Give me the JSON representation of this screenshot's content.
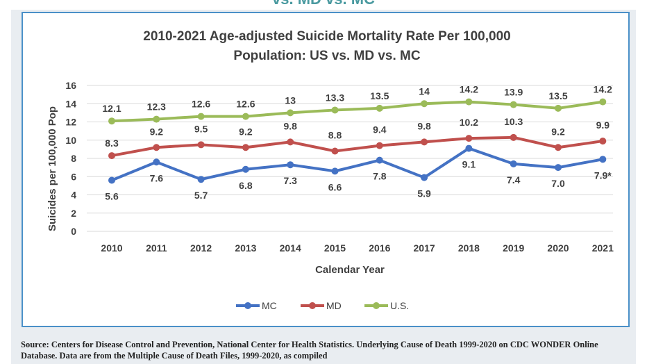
{
  "banner_text": "vs. MD vs. MC",
  "source_text": "Source: Centers for Disease Control and Prevention, National Center for Health Statistics. Underlying Cause of Death 1999-2020 on CDC WONDER Online Database. Data are from the Multiple Cause of Death Files, 1999-2020, as compiled",
  "chart_data": {
    "type": "line",
    "title": [
      "2010-2021 Age-adjusted Suicide Mortality Rate Per 100,000",
      "Population: US vs. MD vs. MC"
    ],
    "xlabel": "Calendar Year",
    "ylabel": "Suicides per 100,000 Pop",
    "ylim": [
      0,
      16
    ],
    "yticks": [
      0,
      2,
      4,
      6,
      8,
      10,
      12,
      14,
      16
    ],
    "categories": [
      "2010",
      "2011",
      "2012",
      "2013",
      "2014",
      "2015",
      "2016",
      "2017",
      "2018",
      "2019",
      "2020",
      "2021"
    ],
    "grid": true,
    "legend_position": "bottom",
    "series": [
      {
        "name": "MC",
        "color": "#4472c4",
        "values": [
          5.6,
          7.6,
          5.7,
          6.8,
          7.3,
          6.6,
          7.8,
          5.9,
          9.1,
          7.4,
          7.0,
          7.9
        ],
        "labels": [
          "5.6",
          "7.6",
          "5.7",
          "6.8",
          "7.3",
          "6.6",
          "7.8",
          "5.9",
          "9.1",
          "7.4",
          "7.0",
          "7.9*"
        ]
      },
      {
        "name": "MD",
        "color": "#c0504d",
        "values": [
          8.3,
          9.2,
          9.5,
          9.2,
          9.8,
          8.8,
          9.4,
          9.8,
          10.2,
          10.3,
          9.2,
          9.9
        ],
        "labels": [
          "8.3",
          "9.2",
          "9.5",
          "9.2",
          "9.8",
          "8.8",
          "9.4",
          "9.8",
          "10.2",
          "10.3",
          "9.2",
          "9.9"
        ]
      },
      {
        "name": "U.S.",
        "color": "#9bbb59",
        "values": [
          12.1,
          12.3,
          12.6,
          12.6,
          13,
          13.3,
          13.5,
          14,
          14.2,
          13.9,
          13.5,
          14.2
        ],
        "labels": [
          "12.1",
          "12.3",
          "12.6",
          "12.6",
          "13",
          "13.3",
          "13.5",
          "14",
          "14.2",
          "13.9",
          "13.5",
          "14.2"
        ]
      }
    ]
  }
}
